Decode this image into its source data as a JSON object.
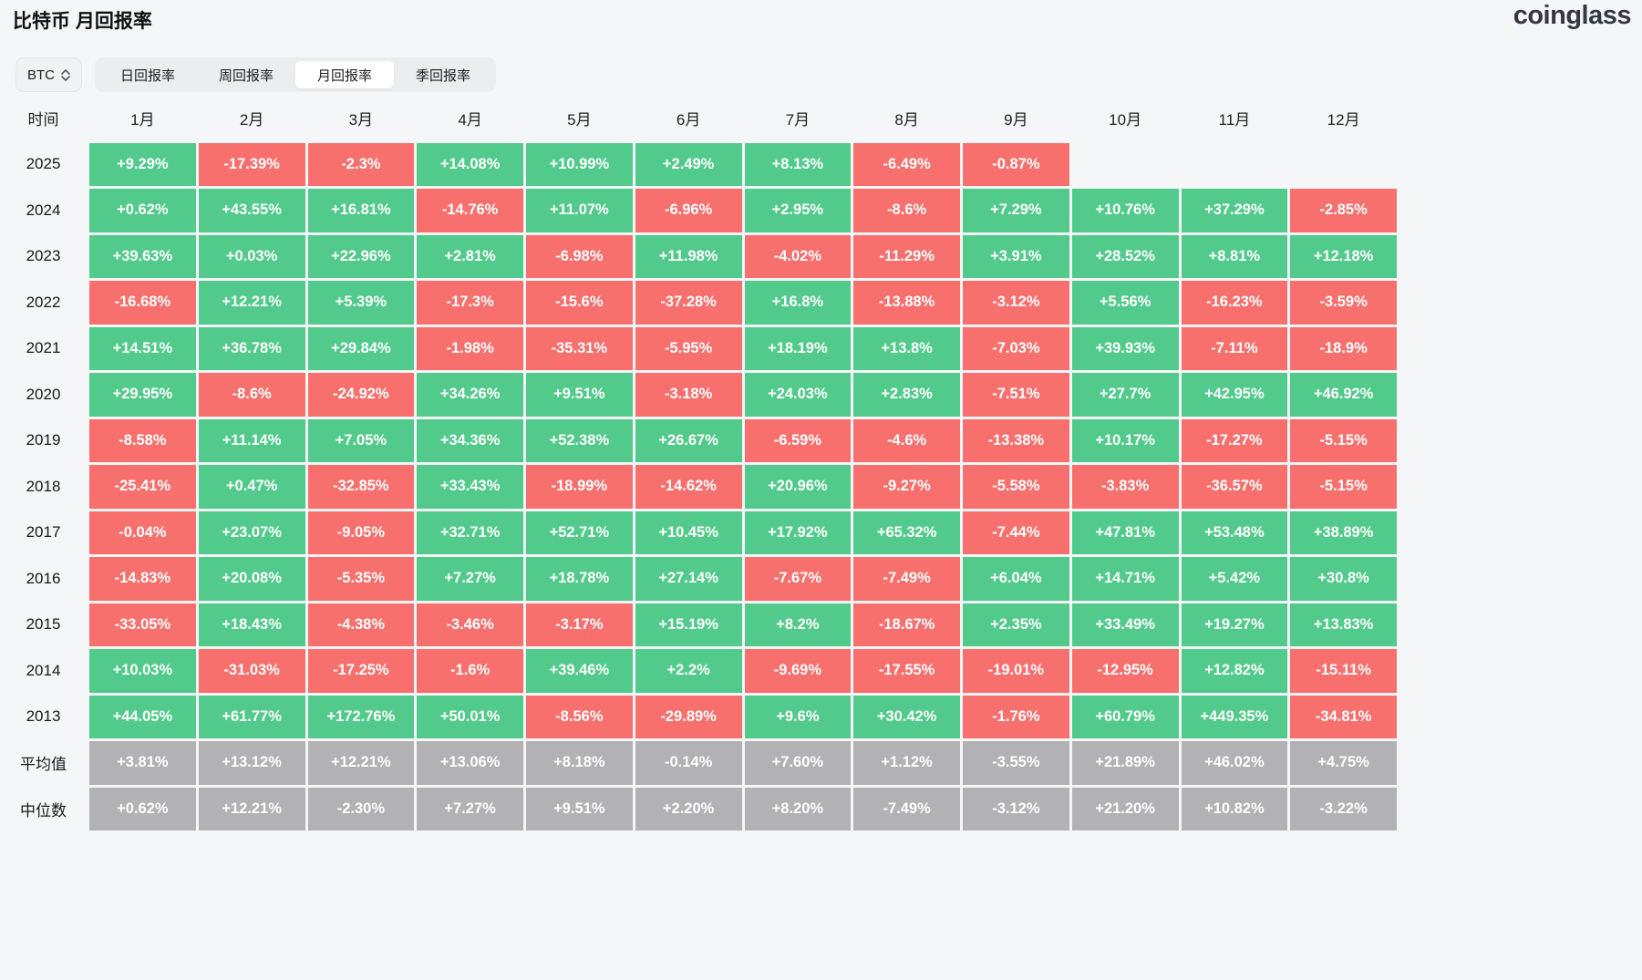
{
  "header": {
    "title": "比特币 月回报率",
    "brand": "coinglass"
  },
  "controls": {
    "coin_selector": {
      "value": "BTC"
    },
    "tabs": [
      {
        "id": "daily",
        "label": "日回报率",
        "active": false
      },
      {
        "id": "weekly",
        "label": "周回报率",
        "active": false
      },
      {
        "id": "monthly",
        "label": "月回报率",
        "active": true
      },
      {
        "id": "quarterly",
        "label": "季回报率",
        "active": false
      }
    ]
  },
  "colors": {
    "positive": "#52ca8b",
    "negative": "#f7706d",
    "summary": "#b2b2b4"
  },
  "chart_data": {
    "type": "heatmap",
    "title": "比特币 月回报率",
    "corner_label": "时间",
    "columns": [
      "1月",
      "2月",
      "3月",
      "4月",
      "5月",
      "6月",
      "7月",
      "8月",
      "9月",
      "10月",
      "11月",
      "12月"
    ],
    "rows": [
      {
        "label": "2025",
        "summary": false,
        "values": [
          "+9.29%",
          "-17.39%",
          "-2.3%",
          "+14.08%",
          "+10.99%",
          "+2.49%",
          "+8.13%",
          "-6.49%",
          "-0.87%",
          null,
          null,
          null
        ]
      },
      {
        "label": "2024",
        "summary": false,
        "values": [
          "+0.62%",
          "+43.55%",
          "+16.81%",
          "-14.76%",
          "+11.07%",
          "-6.96%",
          "+2.95%",
          "-8.6%",
          "+7.29%",
          "+10.76%",
          "+37.29%",
          "-2.85%"
        ]
      },
      {
        "label": "2023",
        "summary": false,
        "values": [
          "+39.63%",
          "+0.03%",
          "+22.96%",
          "+2.81%",
          "-6.98%",
          "+11.98%",
          "-4.02%",
          "-11.29%",
          "+3.91%",
          "+28.52%",
          "+8.81%",
          "+12.18%"
        ]
      },
      {
        "label": "2022",
        "summary": false,
        "values": [
          "-16.68%",
          "+12.21%",
          "+5.39%",
          "-17.3%",
          "-15.6%",
          "-37.28%",
          "+16.8%",
          "-13.88%",
          "-3.12%",
          "+5.56%",
          "-16.23%",
          "-3.59%"
        ]
      },
      {
        "label": "2021",
        "summary": false,
        "values": [
          "+14.51%",
          "+36.78%",
          "+29.84%",
          "-1.98%",
          "-35.31%",
          "-5.95%",
          "+18.19%",
          "+13.8%",
          "-7.03%",
          "+39.93%",
          "-7.11%",
          "-18.9%"
        ]
      },
      {
        "label": "2020",
        "summary": false,
        "values": [
          "+29.95%",
          "-8.6%",
          "-24.92%",
          "+34.26%",
          "+9.51%",
          "-3.18%",
          "+24.03%",
          "+2.83%",
          "-7.51%",
          "+27.7%",
          "+42.95%",
          "+46.92%"
        ]
      },
      {
        "label": "2019",
        "summary": false,
        "values": [
          "-8.58%",
          "+11.14%",
          "+7.05%",
          "+34.36%",
          "+52.38%",
          "+26.67%",
          "-6.59%",
          "-4.6%",
          "-13.38%",
          "+10.17%",
          "-17.27%",
          "-5.15%"
        ]
      },
      {
        "label": "2018",
        "summary": false,
        "values": [
          "-25.41%",
          "+0.47%",
          "-32.85%",
          "+33.43%",
          "-18.99%",
          "-14.62%",
          "+20.96%",
          "-9.27%",
          "-5.58%",
          "-3.83%",
          "-36.57%",
          "-5.15%"
        ]
      },
      {
        "label": "2017",
        "summary": false,
        "values": [
          "-0.04%",
          "+23.07%",
          "-9.05%",
          "+32.71%",
          "+52.71%",
          "+10.45%",
          "+17.92%",
          "+65.32%",
          "-7.44%",
          "+47.81%",
          "+53.48%",
          "+38.89%"
        ]
      },
      {
        "label": "2016",
        "summary": false,
        "values": [
          "-14.83%",
          "+20.08%",
          "-5.35%",
          "+7.27%",
          "+18.78%",
          "+27.14%",
          "-7.67%",
          "-7.49%",
          "+6.04%",
          "+14.71%",
          "+5.42%",
          "+30.8%"
        ]
      },
      {
        "label": "2015",
        "summary": false,
        "values": [
          "-33.05%",
          "+18.43%",
          "-4.38%",
          "-3.46%",
          "-3.17%",
          "+15.19%",
          "+8.2%",
          "-18.67%",
          "+2.35%",
          "+33.49%",
          "+19.27%",
          "+13.83%"
        ]
      },
      {
        "label": "2014",
        "summary": false,
        "values": [
          "+10.03%",
          "-31.03%",
          "-17.25%",
          "-1.6%",
          "+39.46%",
          "+2.2%",
          "-9.69%",
          "-17.55%",
          "-19.01%",
          "-12.95%",
          "+12.82%",
          "-15.11%"
        ]
      },
      {
        "label": "2013",
        "summary": false,
        "values": [
          "+44.05%",
          "+61.77%",
          "+172.76%",
          "+50.01%",
          "-8.56%",
          "-29.89%",
          "+9.6%",
          "+30.42%",
          "-1.76%",
          "+60.79%",
          "+449.35%",
          "-34.81%"
        ]
      },
      {
        "label": "平均值",
        "summary": true,
        "values": [
          "+3.81%",
          "+13.12%",
          "+12.21%",
          "+13.06%",
          "+8.18%",
          "-0.14%",
          "+7.60%",
          "+1.12%",
          "-3.55%",
          "+21.89%",
          "+46.02%",
          "+4.75%"
        ]
      },
      {
        "label": "中位数",
        "summary": true,
        "values": [
          "+0.62%",
          "+12.21%",
          "-2.30%",
          "+7.27%",
          "+9.51%",
          "+2.20%",
          "+8.20%",
          "-7.49%",
          "-3.12%",
          "+21.20%",
          "+10.82%",
          "-3.22%"
        ]
      }
    ]
  }
}
